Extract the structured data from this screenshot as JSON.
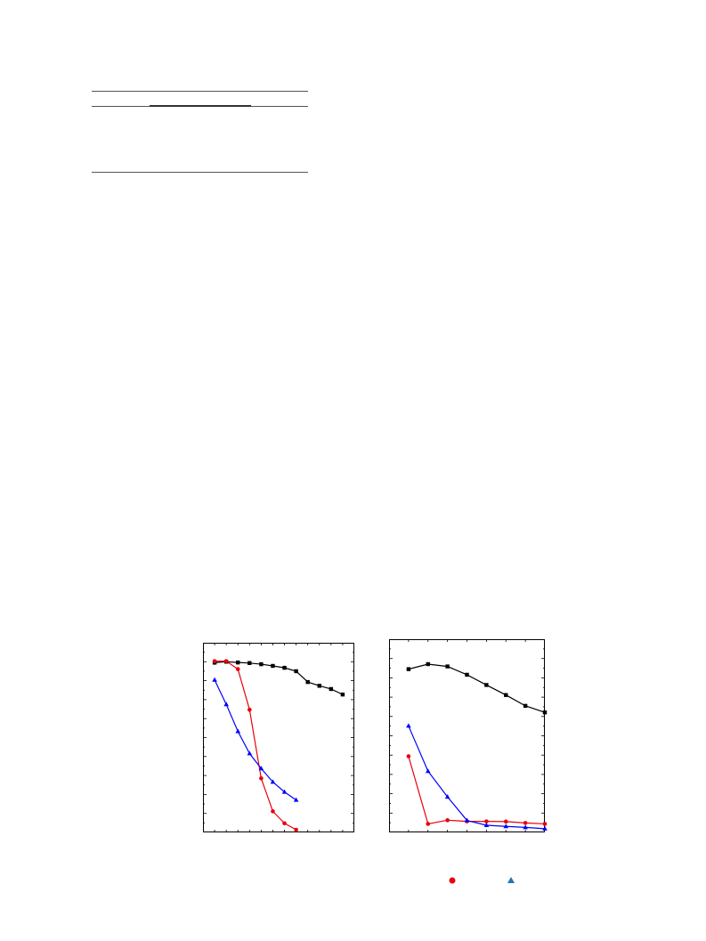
{
  "colors": {
    "black_series": "#000000",
    "red_series": "#e8000b",
    "blue_series": "#0000ff",
    "legend_blue": "#1f77b4"
  },
  "chart_data": [
    {
      "type": "line",
      "grid": false,
      "xlim": [
        0,
        13
      ],
      "ylim": [
        0,
        100
      ],
      "series": [
        {
          "color": "black",
          "marker": "square",
          "x": [
            1,
            2,
            3,
            4,
            5,
            6,
            7,
            8,
            9,
            10,
            11,
            12
          ],
          "y": [
            89.5,
            90,
            89.6,
            89.3,
            88.7,
            87.8,
            86.8,
            85,
            79.3,
            77.3,
            75.6,
            72.7
          ]
        },
        {
          "color": "red",
          "marker": "circle",
          "x": [
            1,
            2,
            3,
            4,
            5,
            6,
            7,
            8
          ],
          "y": [
            90.3,
            90.3,
            86.1,
            64.7,
            28.5,
            11.1,
            4.8,
            1.4
          ]
        },
        {
          "color": "blue",
          "marker": "triangle",
          "x": [
            1,
            2,
            3,
            4,
            5,
            6,
            7,
            8
          ],
          "y": [
            80.4,
            67.5,
            53.3,
            41.6,
            33.7,
            26.6,
            21.3,
            17.1
          ]
        }
      ]
    },
    {
      "type": "line",
      "grid": false,
      "xlim": [
        0,
        8
      ],
      "ylim": [
        0,
        100
      ],
      "series": [
        {
          "color": "black",
          "marker": "square",
          "x": [
            1,
            2,
            3,
            4,
            5,
            6,
            7,
            8
          ],
          "y": [
            84.5,
            87.1,
            85.9,
            81.6,
            76.3,
            71.1,
            65.5,
            62.1
          ]
        },
        {
          "color": "red",
          "marker": "circle",
          "x": [
            1,
            2,
            3,
            4,
            5,
            6,
            7,
            8
          ],
          "y": [
            39.4,
            4.4,
            6.3,
            5.7,
            5.7,
            5.6,
            4.9,
            4.4
          ]
        },
        {
          "color": "blue",
          "marker": "triangle",
          "x": [
            1,
            2,
            3,
            4,
            5,
            6,
            7,
            8
          ],
          "y": [
            55.1,
            31.7,
            18.4,
            6.2,
            3.7,
            3.1,
            2.6,
            1.9
          ]
        }
      ]
    }
  ],
  "legend": [
    {
      "color": "red",
      "marker": "circle"
    },
    {
      "color": "blue",
      "marker": "triangle"
    }
  ]
}
